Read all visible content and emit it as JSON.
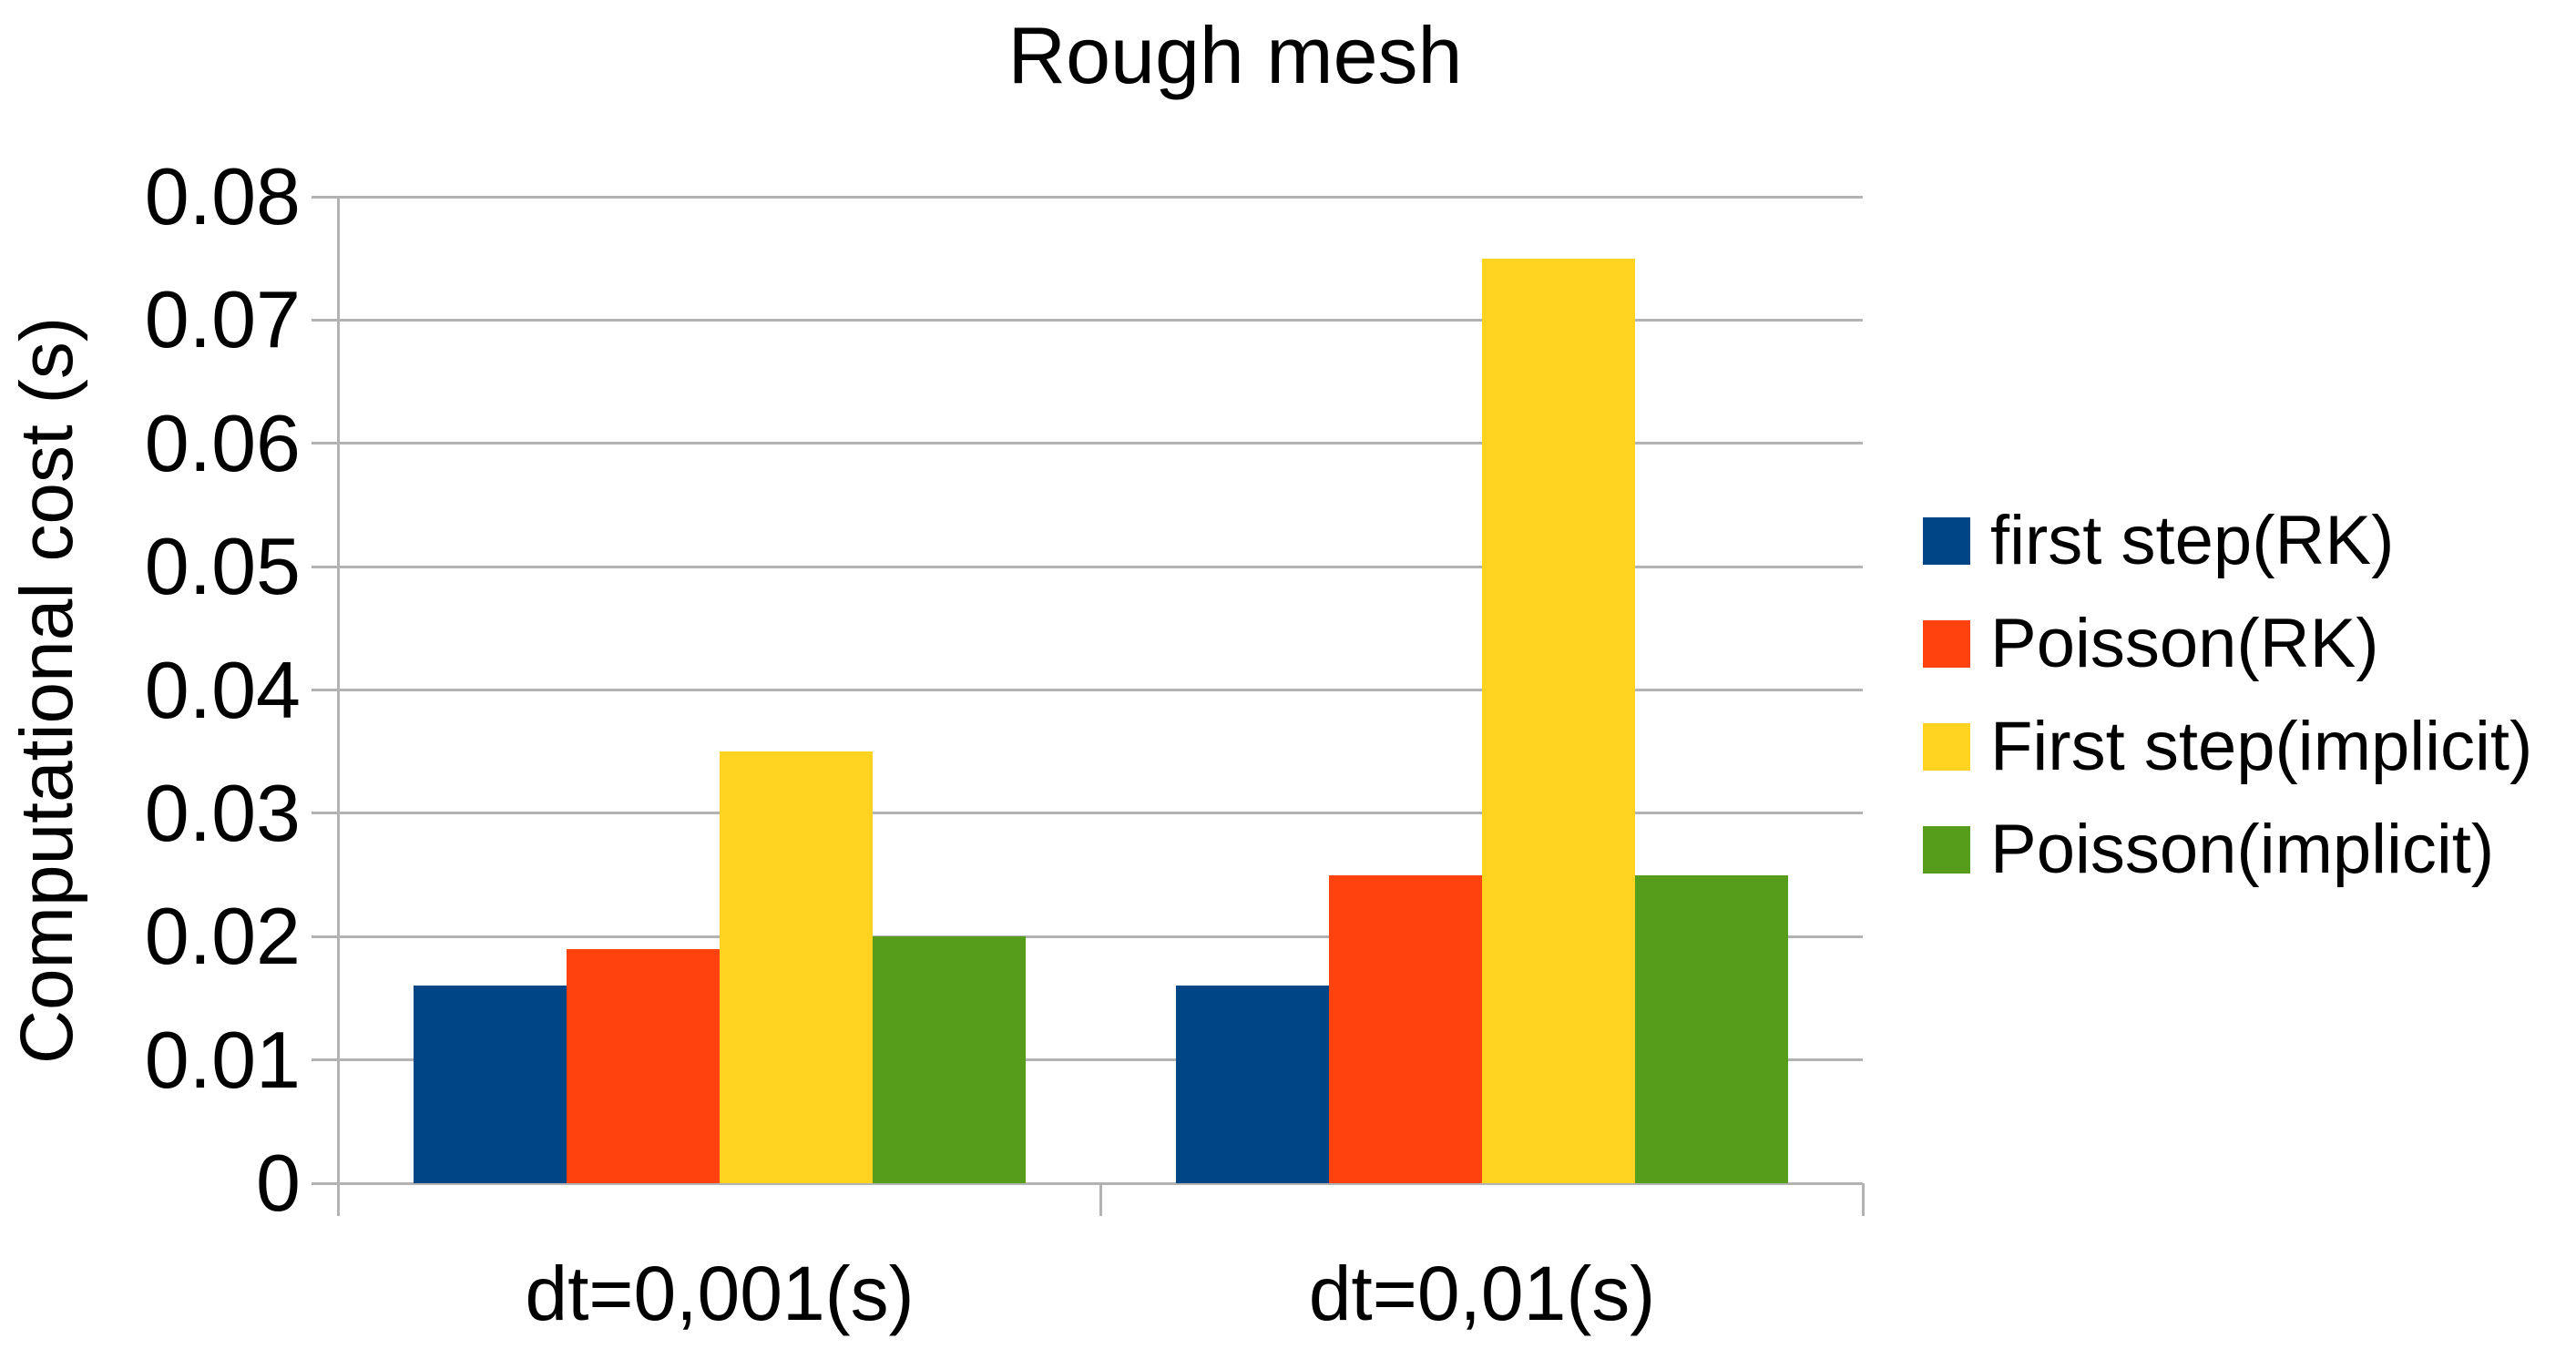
{
  "chart_data": {
    "type": "bar",
    "title": "Rough mesh",
    "ylabel": "Computational cost (s)",
    "xlabel": "",
    "categories": [
      "dt=0,001(s)",
      "dt=0,01(s)"
    ],
    "series": [
      {
        "name": "first step(RK)",
        "color": "#004586",
        "values": [
          0.016,
          0.016
        ]
      },
      {
        "name": "Poisson(RK)",
        "color": "#FF420E",
        "values": [
          0.019,
          0.025
        ]
      },
      {
        "name": "First step(implicit)",
        "color": "#FFD320",
        "values": [
          0.035,
          0.075
        ]
      },
      {
        "name": "Poisson(implicit)",
        "color": "#579D1C",
        "values": [
          0.02,
          0.025
        ]
      }
    ],
    "ylim": [
      0,
      0.08
    ],
    "yticks": [
      {
        "value": 0.08,
        "label": "0.08"
      },
      {
        "value": 0.07,
        "label": "0.07"
      },
      {
        "value": 0.06,
        "label": "0.06"
      },
      {
        "value": 0.05,
        "label": "0.05"
      },
      {
        "value": 0.04,
        "label": "0.04"
      },
      {
        "value": 0.03,
        "label": "0.03"
      },
      {
        "value": 0.02,
        "label": "0.02"
      },
      {
        "value": 0.01,
        "label": "0.01"
      },
      {
        "value": 0,
        "label": "0"
      }
    ],
    "grid": true,
    "legend_position": "right",
    "grid_color": "#b3b3b3",
    "axis_color": "#b3b3b3",
    "text_color": "#000000",
    "background_color": "#ffffff"
  }
}
